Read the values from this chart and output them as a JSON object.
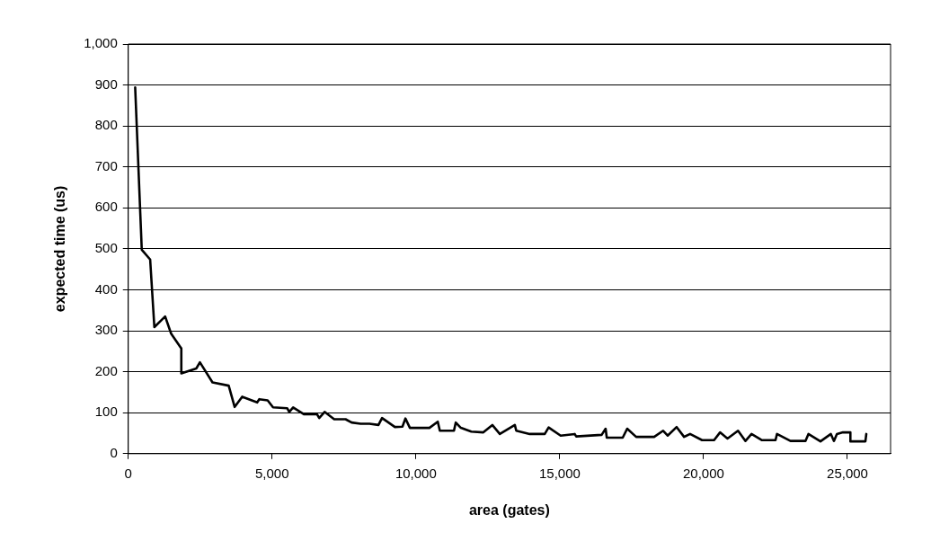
{
  "chart_data": {
    "type": "line",
    "xlabel": "area (gates)",
    "ylabel": "expected time (us)",
    "xlim": [
      0,
      26500
    ],
    "xticks": [
      0,
      {
        "value": 5000,
        "label": "5,000"
      },
      {
        "value": 10000,
        "label": "10,000"
      },
      {
        "value": 15000,
        "label": "15,000"
      },
      {
        "value": 20000,
        "label": "20,000"
      },
      {
        "value": 25000,
        "label": "25,000"
      }
    ],
    "ylim": [
      0,
      1000
    ],
    "yticks": [
      0,
      100,
      200,
      300,
      400,
      500,
      600,
      700,
      800,
      900,
      {
        "value": 1000,
        "label": "1,000"
      }
    ],
    "grid": "y",
    "legend": false,
    "marker": "none",
    "line_style": "solid",
    "series": [
      {
        "color": "#000000",
        "x": [
          240,
          469,
          761,
          907,
          1282,
          1490,
          1844,
          1844,
          2365,
          2490,
          2928,
          3491,
          3699,
          3960,
          4481,
          4554,
          4845,
          5033,
          5523,
          5596,
          5731,
          6116,
          6565,
          6638,
          6825,
          7158,
          7554,
          7763,
          8075,
          8388,
          8697,
          8822,
          9269,
          9531,
          9634,
          9791,
          10469,
          10759,
          10831,
          11322,
          11384,
          11563,
          11925,
          12344,
          12656,
          12916,
          13438,
          13488,
          13956,
          14478,
          14613,
          15031,
          15519,
          15572,
          16456,
          16594,
          16634,
          17188,
          17344,
          17656,
          18281,
          18594,
          18750,
          19063,
          19322,
          19531,
          19947,
          20364,
          20572,
          20831,
          21197,
          21456,
          21666,
          22031,
          22500,
          22552,
          23019,
          23541,
          23644,
          24063,
          24425,
          24531,
          24634,
          24844,
          25103,
          25103,
          25625,
          25656
        ],
        "values": [
          894,
          498,
          474,
          309,
          335,
          293,
          257,
          196,
          208,
          223,
          174,
          166,
          114,
          139,
          125,
          133,
          130,
          113,
          111,
          102,
          113,
          96,
          96,
          87,
          102,
          84,
          84,
          76,
          73,
          73,
          70,
          87,
          65,
          66,
          86,
          63,
          63,
          78,
          56,
          56,
          76,
          63,
          54,
          52,
          70,
          48,
          70,
          56,
          48,
          48,
          64,
          44,
          48,
          42,
          46,
          61,
          39,
          39,
          61,
          41,
          41,
          56,
          44,
          65,
          41,
          48,
          33,
          33,
          52,
          37,
          56,
          31,
          48,
          33,
          33,
          48,
          31,
          31,
          48,
          30,
          48,
          31,
          48,
          52,
          52,
          30,
          30,
          48
        ]
      }
    ]
  }
}
